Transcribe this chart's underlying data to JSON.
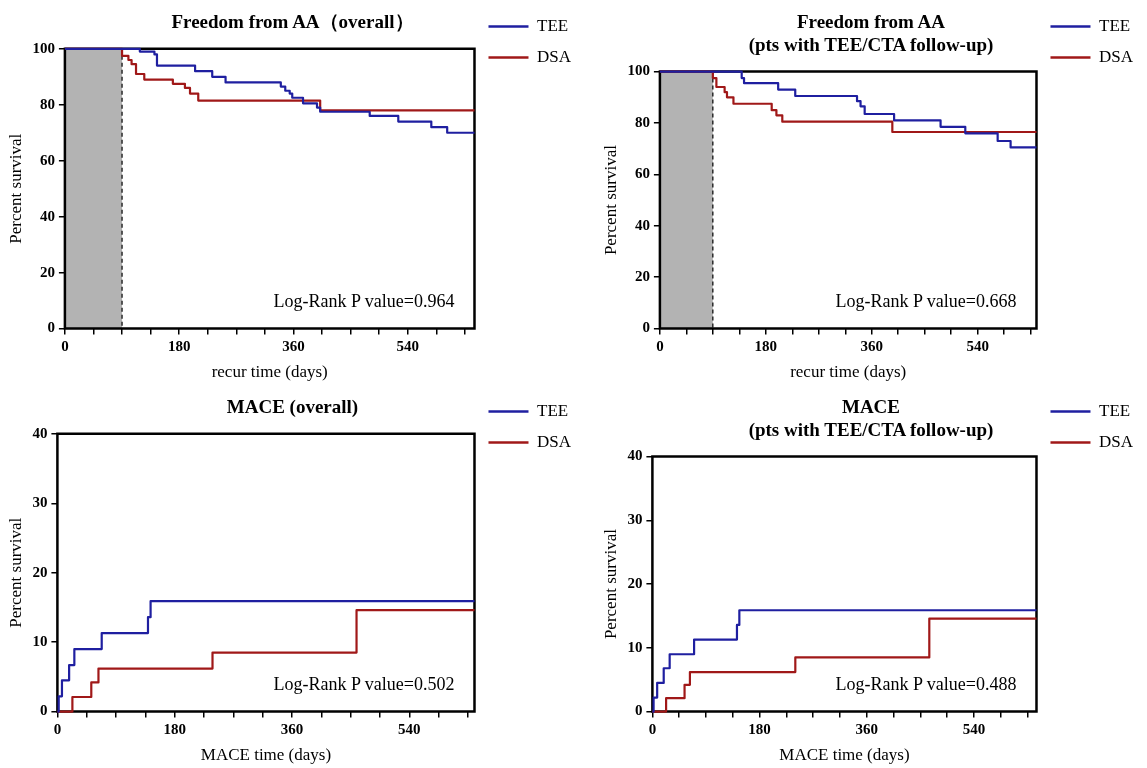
{
  "chart_data": [
    {
      "type": "step",
      "title": "Freedom from AA（overall）",
      "xlabel": "recur time (days)",
      "ylabel": "Percent survival",
      "legend": "right",
      "grid": false,
      "xlim": [
        0,
        645
      ],
      "ylim": [
        0,
        100
      ],
      "yticks": [
        0,
        20,
        40,
        60,
        80,
        100
      ],
      "xticks": [
        0,
        {
          "value": 45,
          "label": null
        },
        {
          "value": 90,
          "label": null
        },
        {
          "value": 135,
          "label": null
        },
        180,
        {
          "value": 225,
          "label": null
        },
        {
          "value": 270,
          "label": null
        },
        {
          "value": 315,
          "label": null
        },
        360,
        {
          "value": 405,
          "label": null
        },
        {
          "value": 450,
          "label": null
        },
        {
          "value": 495,
          "label": null
        },
        540,
        {
          "value": 585,
          "label": null
        },
        {
          "value": 630,
          "label": null
        }
      ],
      "bands": [
        {
          "axis": "x",
          "from": 0,
          "to": 90,
          "color": "#808080"
        }
      ],
      "ref_lines": [
        {
          "axis": "x",
          "value": 90,
          "line_style": "dashed"
        }
      ],
      "annotations": [
        "Log-Rank P value=0.964"
      ],
      "series": [
        {
          "name": "TEE",
          "color": "#1f1fa0",
          "x": [
            0,
            93,
            118,
            141,
            145,
            205,
            232,
            253,
            340,
            347,
            354,
            358,
            375,
            397,
            402,
            480,
            525,
            577,
            602,
            645
          ],
          "values": [
            100,
            100,
            99,
            98,
            94,
            92,
            90,
            88,
            86.5,
            85,
            84,
            82.5,
            80.5,
            79,
            77.5,
            76,
            74,
            72,
            70,
            70
          ]
        },
        {
          "name": "DSA",
          "color": "#a01818",
          "x": [
            0,
            90,
            100,
            105,
            112,
            125,
            170,
            189,
            197,
            210,
            402,
            645
          ],
          "values": [
            100,
            97.5,
            96,
            94.5,
            91,
            89,
            87.5,
            86,
            84,
            81.5,
            78,
            78
          ]
        }
      ]
    },
    {
      "type": "step",
      "title": "Freedom from AA",
      "subtitle": "(pts with TEE/CTA follow-up)",
      "xlabel": "recur time (days)",
      "ylabel": "Percent survival",
      "legend": "right",
      "grid": false,
      "xlim": [
        0,
        640
      ],
      "ylim": [
        0,
        100
      ],
      "yticks": [
        0,
        20,
        40,
        60,
        80,
        100
      ],
      "xticks": [
        0,
        {
          "value": 45,
          "label": null
        },
        {
          "value": 90,
          "label": null
        },
        {
          "value": 135,
          "label": null
        },
        180,
        {
          "value": 225,
          "label": null
        },
        {
          "value": 270,
          "label": null
        },
        {
          "value": 315,
          "label": null
        },
        360,
        {
          "value": 405,
          "label": null
        },
        {
          "value": 450,
          "label": null
        },
        {
          "value": 495,
          "label": null
        },
        540,
        {
          "value": 585,
          "label": null
        },
        {
          "value": 630,
          "label": null
        }
      ],
      "bands": [
        {
          "axis": "x",
          "from": 0,
          "to": 90,
          "color": "#808080"
        }
      ],
      "ref_lines": [
        {
          "axis": "x",
          "value": 90,
          "line_style": "dashed"
        }
      ],
      "annotations": [
        "Log-Rank P value=0.668"
      ],
      "series": [
        {
          "name": "TEE",
          "color": "#1f1fa0",
          "x": [
            0,
            139,
            143,
            201,
            230,
            335,
            341,
            348,
            398,
            477,
            519,
            574,
            596,
            640
          ],
          "values": [
            100,
            97.5,
            95.5,
            93,
            90.5,
            88.5,
            86.5,
            83.5,
            81,
            78.5,
            76,
            73,
            70.5,
            70.5
          ]
        },
        {
          "name": "DSA",
          "color": "#a01818",
          "x": [
            0,
            90,
            96,
            110,
            114,
            125,
            190,
            198,
            208,
            395,
            640
          ],
          "values": [
            100,
            97.5,
            94,
            92,
            90,
            87.5,
            85,
            83,
            80.5,
            76.5,
            76.5
          ]
        }
      ]
    },
    {
      "type": "step",
      "title": "MACE (overall)",
      "xlabel": "MACE time (days)",
      "ylabel": "Percent survival",
      "legend": "right",
      "grid": false,
      "xlim": [
        0,
        640
      ],
      "ylim": [
        0,
        40
      ],
      "yticks": [
        0,
        10,
        20,
        30,
        40
      ],
      "xticks": [
        0,
        {
          "value": 45,
          "label": null
        },
        {
          "value": 90,
          "label": null
        },
        {
          "value": 135,
          "label": null
        },
        180,
        {
          "value": 225,
          "label": null
        },
        {
          "value": 270,
          "label": null
        },
        {
          "value": 315,
          "label": null
        },
        360,
        {
          "value": 405,
          "label": null
        },
        {
          "value": 450,
          "label": null
        },
        {
          "value": 495,
          "label": null
        },
        540,
        {
          "value": 585,
          "label": null
        },
        {
          "value": 630,
          "label": null
        }
      ],
      "annotations": [
        "Log-Rank P value=0.502"
      ],
      "series": [
        {
          "name": "TEE",
          "color": "#1f1fa0",
          "x": [
            0,
            2,
            7,
            18,
            26,
            68,
            139,
            143,
            640
          ],
          "values": [
            0,
            2.2,
            4.5,
            6.7,
            9,
            11.3,
            13.6,
            15.9,
            15.9
          ]
        },
        {
          "name": "DSA",
          "color": "#a01818",
          "x": [
            0,
            23,
            52,
            63,
            238,
            459,
            640
          ],
          "values": [
            0,
            2.1,
            4.2,
            6.2,
            8.5,
            14.6,
            14.6
          ]
        }
      ]
    },
    {
      "type": "step",
      "title": "MACE",
      "subtitle": "(pts with TEE/CTA follow-up)",
      "xlabel": "MACE time (days)",
      "ylabel": "Percent survival",
      "legend": "right",
      "grid": false,
      "xlim": [
        0,
        645
      ],
      "ylim": [
        0,
        40
      ],
      "yticks": [
        0,
        10,
        20,
        30,
        40
      ],
      "xticks": [
        0,
        {
          "value": 45,
          "label": null
        },
        {
          "value": 90,
          "label": null
        },
        {
          "value": 135,
          "label": null
        },
        180,
        {
          "value": 225,
          "label": null
        },
        {
          "value": 270,
          "label": null
        },
        {
          "value": 315,
          "label": null
        },
        360,
        {
          "value": 405,
          "label": null
        },
        {
          "value": 450,
          "label": null
        },
        {
          "value": 495,
          "label": null
        },
        540,
        {
          "value": 585,
          "label": null
        },
        {
          "value": 630,
          "label": null
        }
      ],
      "annotations": [
        "Log-Rank P value=0.488"
      ],
      "series": [
        {
          "name": "TEE",
          "color": "#1f1fa0",
          "x": [
            0,
            2,
            8,
            19,
            29,
            70,
            142,
            146,
            645
          ],
          "values": [
            0,
            2.2,
            4.5,
            6.8,
            9,
            11.3,
            13.6,
            15.9,
            15.9
          ]
        },
        {
          "name": "DSA",
          "color": "#a01818",
          "x": [
            0,
            23,
            54,
            63,
            240,
            465,
            645
          ],
          "values": [
            0,
            2.1,
            4.2,
            6.2,
            8.5,
            14.6,
            14.6
          ]
        }
      ]
    }
  ]
}
